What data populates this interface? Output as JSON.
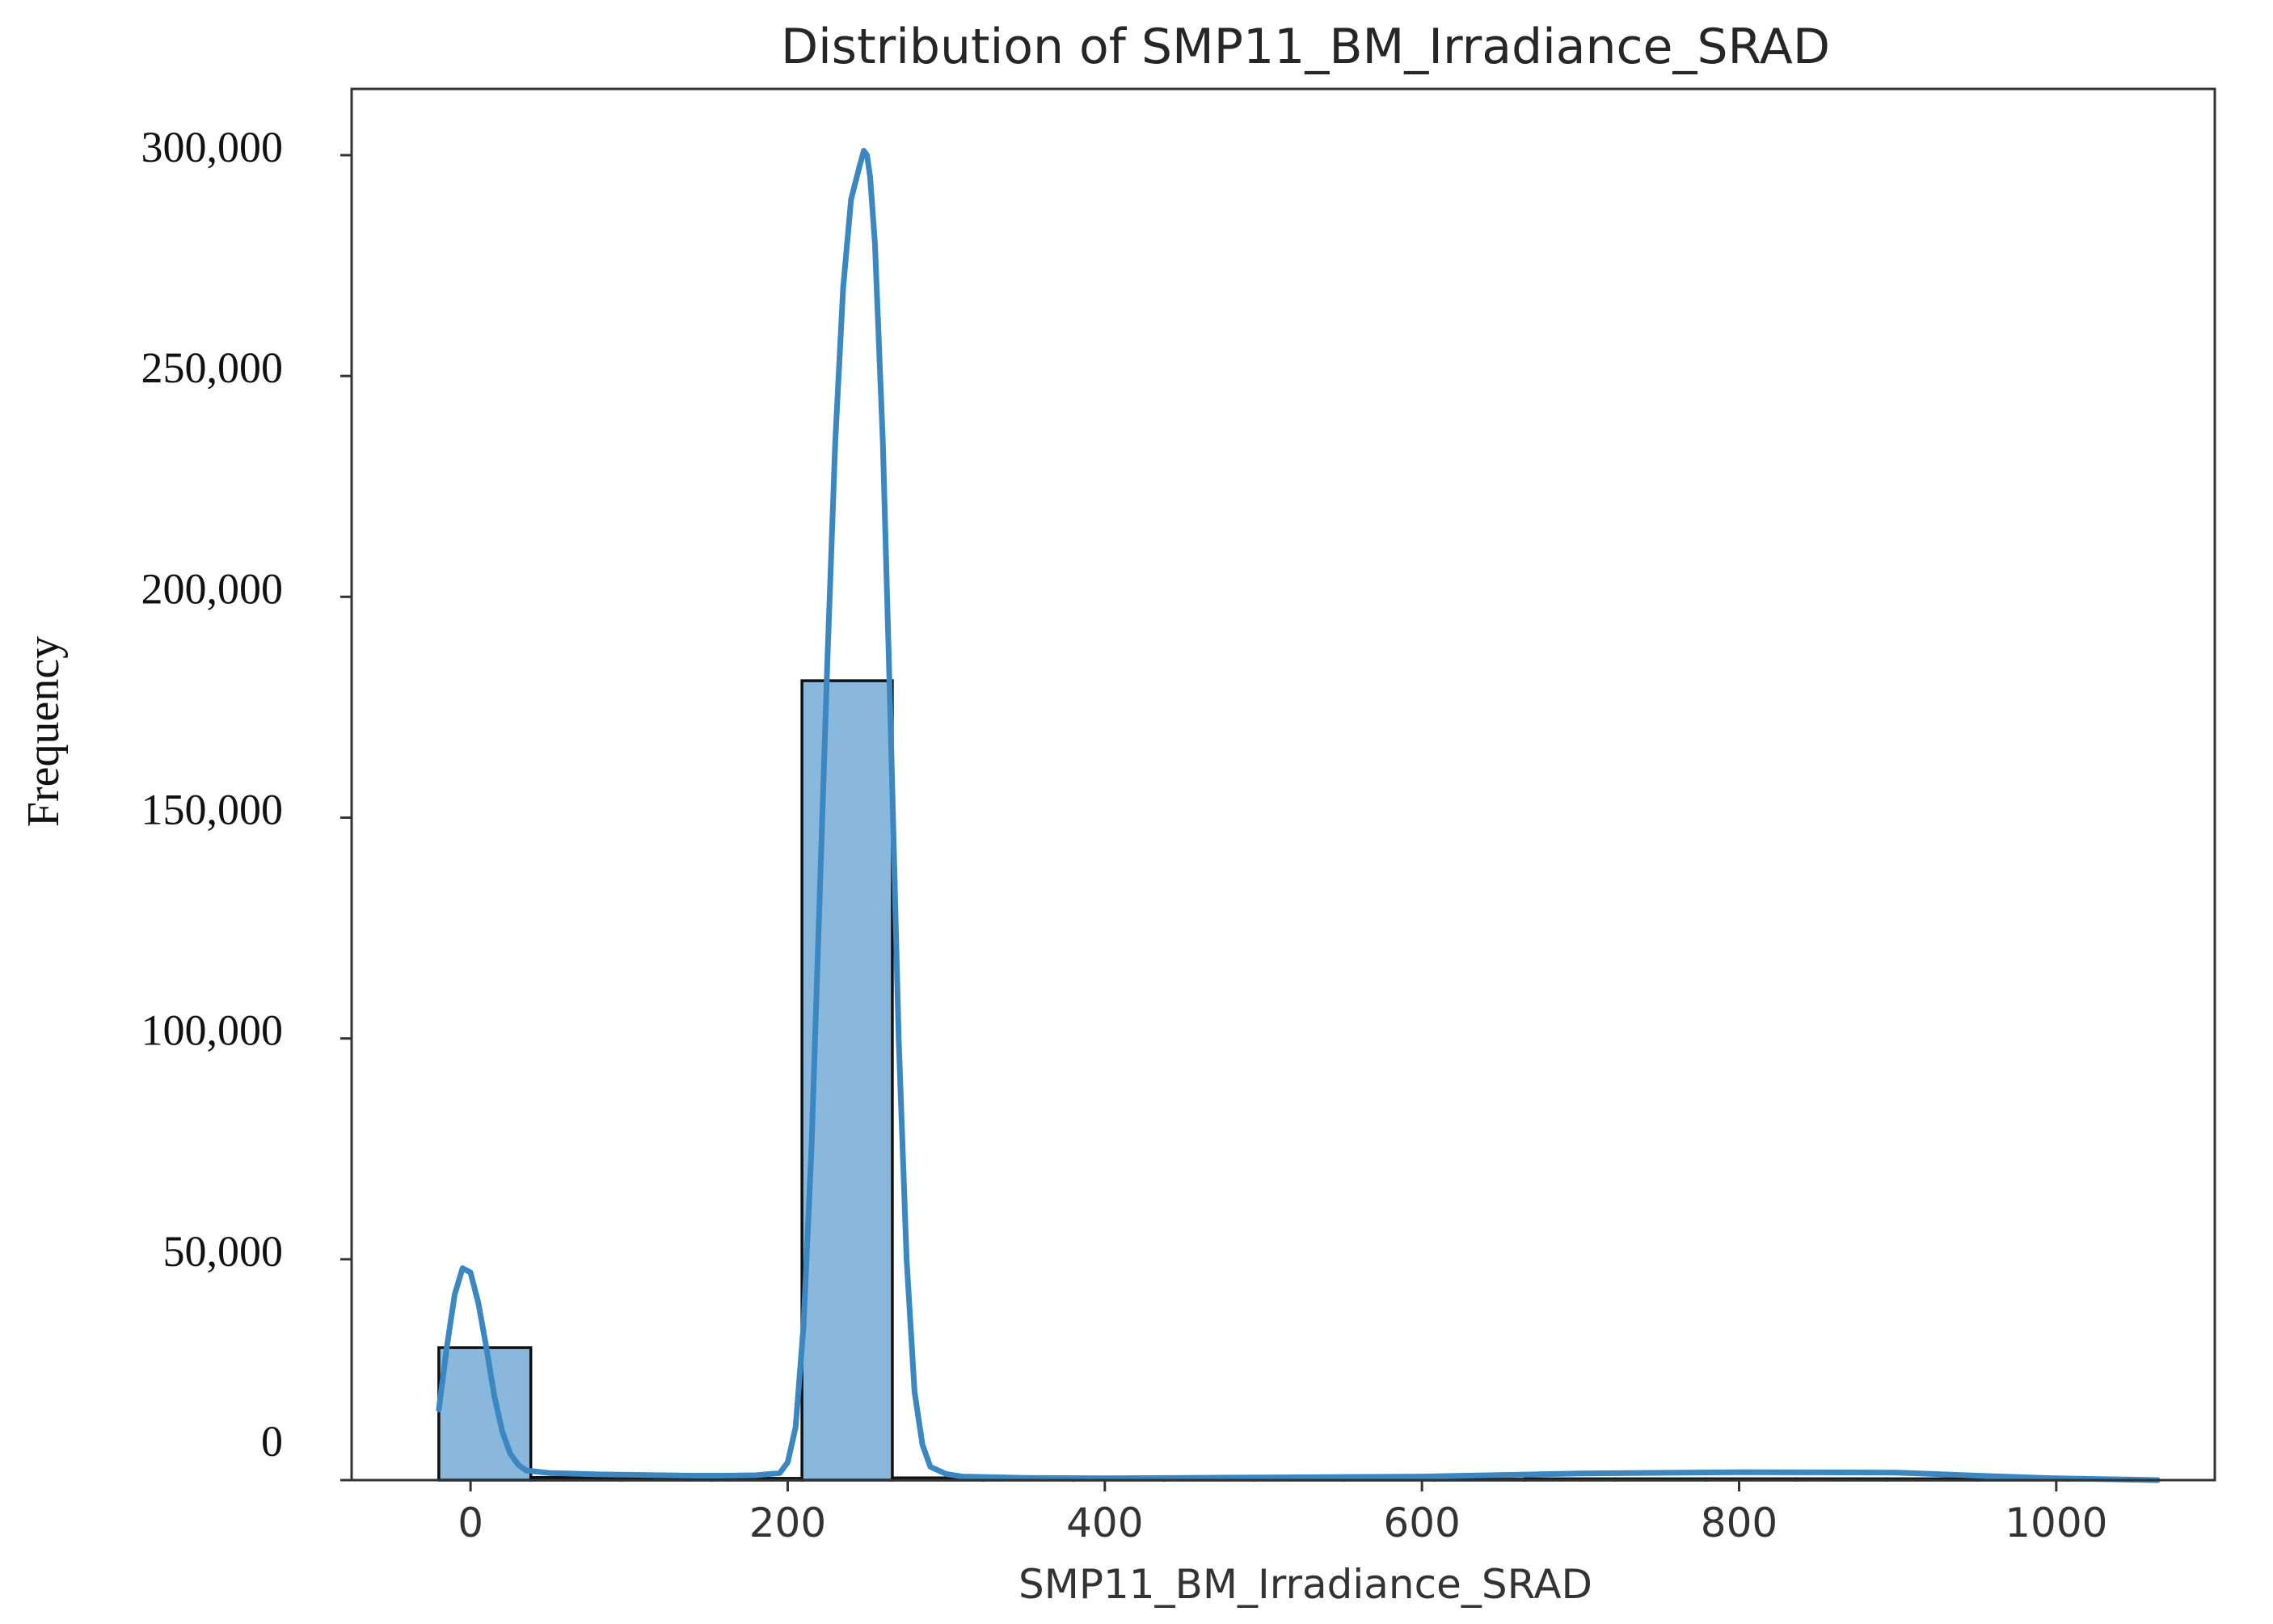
{
  "chart_data": {
    "type": "bar",
    "subtype": "histogram-with-kde",
    "title": "Distribution of SMP11_BM_Irradiance_SRAD",
    "xlabel": "SMP11_BM_Irradiance_SRAD",
    "ylabel": "Frequency",
    "xlim": [
      -75,
      1100
    ],
    "ylim": [
      0,
      315000
    ],
    "x_ticks": [
      0,
      200,
      400,
      600,
      800,
      1000
    ],
    "x_tick_labels": [
      "0",
      "200",
      "400",
      "600",
      "800",
      "1000"
    ],
    "y_ticks": [
      0,
      50000,
      100000,
      150000,
      200000,
      250000,
      300000
    ],
    "y_tick_labels": [
      "0",
      "50,000",
      "100,000",
      "150,000",
      "200,000",
      "250,000",
      "300,000"
    ],
    "bins": [
      {
        "x_start": -20,
        "x_end": 38,
        "count": 30000
      },
      {
        "x_start": 38,
        "x_end": 95,
        "count": 600
      },
      {
        "x_start": 95,
        "x_end": 152,
        "count": 400
      },
      {
        "x_start": 152,
        "x_end": 209,
        "count": 400
      },
      {
        "x_start": 209,
        "x_end": 266,
        "count": 181000
      },
      {
        "x_start": 266,
        "x_end": 323,
        "count": 500
      },
      {
        "x_start": 323,
        "x_end": 380,
        "count": 300
      },
      {
        "x_start": 380,
        "x_end": 437,
        "count": 300
      },
      {
        "x_start": 437,
        "x_end": 494,
        "count": 300
      },
      {
        "x_start": 494,
        "x_end": 551,
        "count": 200
      },
      {
        "x_start": 551,
        "x_end": 608,
        "count": 200
      },
      {
        "x_start": 608,
        "x_end": 665,
        "count": 200
      },
      {
        "x_start": 665,
        "x_end": 722,
        "count": 300
      },
      {
        "x_start": 722,
        "x_end": 779,
        "count": 300
      },
      {
        "x_start": 779,
        "x_end": 836,
        "count": 300
      },
      {
        "x_start": 836,
        "x_end": 893,
        "count": 300
      },
      {
        "x_start": 893,
        "x_end": 950,
        "count": 300
      },
      {
        "x_start": 950,
        "x_end": 1007,
        "count": 200
      },
      {
        "x_start": 1007,
        "x_end": 1064,
        "count": 100
      }
    ],
    "kde": {
      "x": [
        -20,
        -15,
        -10,
        -5,
        0,
        5,
        10,
        15,
        20,
        25,
        30,
        35,
        40,
        50,
        60,
        80,
        100,
        120,
        140,
        160,
        180,
        195,
        200,
        205,
        210,
        215,
        220,
        225,
        230,
        235,
        240,
        245,
        248,
        250,
        252,
        255,
        260,
        265,
        270,
        275,
        280,
        285,
        290,
        300,
        310,
        350,
        400,
        500,
        600,
        700,
        800,
        900,
        950,
        1000,
        1050,
        1064
      ],
      "y": [
        16000,
        30000,
        42000,
        48000,
        47000,
        40000,
        30000,
        19000,
        11000,
        6000,
        3500,
        2200,
        2000,
        1600,
        1500,
        1300,
        1200,
        1100,
        1000,
        1000,
        1100,
        1600,
        4000,
        12000,
        35000,
        75000,
        130000,
        185000,
        235000,
        270000,
        290000,
        297000,
        301000,
        300000,
        295000,
        280000,
        235000,
        170000,
        100000,
        50000,
        20000,
        8000,
        3000,
        1400,
        800,
        500,
        400,
        600,
        800,
        1500,
        1800,
        1700,
        1000,
        400,
        100,
        0
      ],
      "color": "#3a87c2"
    },
    "bar_color": "#8ab8dc",
    "bar_edge_color": "#111111",
    "grid": false,
    "legend": "none"
  }
}
